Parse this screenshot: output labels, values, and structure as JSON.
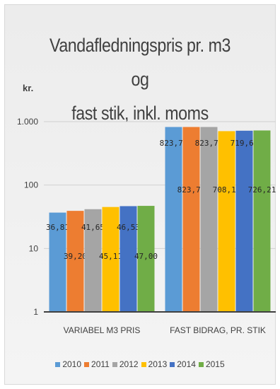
{
  "chart_data": {
    "type": "bar",
    "title": "Vandafledningspris pr. m3 og fast stik, inkl. moms",
    "title_lines": [
      "Vandafledningspris pr. m3 og",
      "fast stik, inkl. moms"
    ],
    "ylabel": "kr.",
    "yscale": "log",
    "ylim": [
      1,
      1000
    ],
    "yticks": [
      1,
      10,
      100,
      1000
    ],
    "ytick_labels": [
      "1",
      "10",
      "100",
      "1.000"
    ],
    "grid": true,
    "legend_position": "bottom",
    "categories": [
      "VARIABEL M3 PRIS",
      "FAST BIDRAG, PR. STIK"
    ],
    "series": [
      {
        "name": "2010",
        "color": "#5b9bd5",
        "values": [
          36.81,
          823.75
        ],
        "labels": [
          "36,81",
          "823,75"
        ]
      },
      {
        "name": "2011",
        "color": "#ed7d31",
        "values": [
          39.2,
          823.75
        ],
        "labels": [
          "39,20",
          "823,75"
        ]
      },
      {
        "name": "2012",
        "color": "#a5a5a5",
        "values": [
          41.65,
          823.75
        ],
        "labels": [
          "41,65",
          "823,75"
        ]
      },
      {
        "name": "2013",
        "color": "#ffc000",
        "values": [
          45.11,
          708.16
        ],
        "labels": [
          "45,11",
          "708,16"
        ]
      },
      {
        "name": "2014",
        "color": "#4472c4",
        "values": [
          46.53,
          719.61
        ],
        "labels": [
          "46,53",
          "719,61"
        ]
      },
      {
        "name": "2015",
        "color": "#70ad47",
        "values": [
          47.0,
          726.21
        ],
        "labels": [
          "47,00",
          "726,21"
        ]
      }
    ]
  }
}
